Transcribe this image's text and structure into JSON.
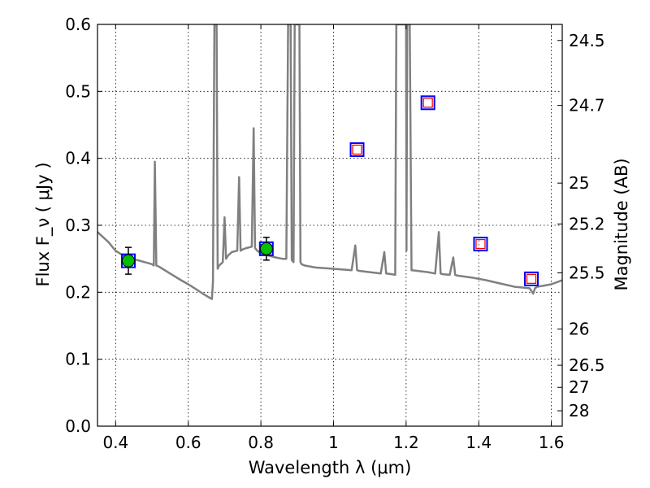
{
  "chart_data": {
    "type": "line",
    "xlabel": "Wavelength  λ (μm)",
    "ylabel": "Flux  F_ν  ( μJy )",
    "y2label": "Magnitude (AB)",
    "xlim": [
      0.35,
      1.63
    ],
    "ylim": [
      0.0,
      0.6
    ],
    "grid": true,
    "x_ticks": [
      0.4,
      0.6,
      0.8,
      1.0,
      1.2,
      1.4,
      1.6
    ],
    "x_tick_labels": [
      "0.4",
      "0.6",
      "0.8",
      "1",
      "1.2",
      "1.4",
      "1.6"
    ],
    "y_ticks": [
      0.0,
      0.1,
      0.2,
      0.3,
      0.4,
      0.5,
      0.6
    ],
    "y_tick_labels": [
      "0.0",
      "0.1",
      "0.2",
      "0.3",
      "0.4",
      "0.5",
      "0.6"
    ],
    "y2_ticks": [
      {
        "label": "24.5",
        "flux": 0.576
      },
      {
        "label": "24.7",
        "flux": 0.479
      },
      {
        "label": "25",
        "flux": 0.363
      },
      {
        "label": "25.2",
        "flux": 0.302
      },
      {
        "label": "25.5",
        "flux": 0.229
      },
      {
        "label": "26",
        "flux": 0.145
      },
      {
        "label": "26.5",
        "flux": 0.091
      },
      {
        "label": "27",
        "flux": 0.058
      },
      {
        "label": "28",
        "flux": 0.023
      }
    ],
    "colors": {
      "spectrum": "#808080",
      "observed": "#00c000",
      "model_outer": "#0000ff",
      "model_inner": "#ff0000",
      "grid": "#000000"
    },
    "series": [
      {
        "kind": "spectrum",
        "x": [
          0.35,
          0.36,
          0.38,
          0.4,
          0.42,
          0.44,
          0.46,
          0.48,
          0.5,
          0.505,
          0.508,
          0.512,
          0.52,
          0.55,
          0.58,
          0.6,
          0.62,
          0.64,
          0.655,
          0.665,
          0.668,
          0.672,
          0.675,
          0.678,
          0.681,
          0.685,
          0.695,
          0.7,
          0.704,
          0.71,
          0.72,
          0.735,
          0.74,
          0.744,
          0.75,
          0.76,
          0.775,
          0.78,
          0.784,
          0.79,
          0.8,
          0.82,
          0.84,
          0.86,
          0.87,
          0.875,
          0.878,
          0.882,
          0.885,
          0.89,
          0.893,
          0.896,
          0.899,
          0.903,
          0.906,
          0.909,
          0.912,
          0.92,
          0.95,
          1.0,
          1.05,
          1.06,
          1.065,
          1.07,
          1.1,
          1.13,
          1.14,
          1.145,
          1.16,
          1.17,
          1.173,
          1.176,
          1.18,
          1.19,
          1.2,
          1.201,
          1.203,
          1.205,
          1.208,
          1.21,
          1.215,
          1.23,
          1.26,
          1.28,
          1.29,
          1.295,
          1.3,
          1.32,
          1.33,
          1.335,
          1.34,
          1.38,
          1.42,
          1.46,
          1.5,
          1.54,
          1.55,
          1.555,
          1.56,
          1.58,
          1.6,
          1.63
        ],
        "values": [
          0.29,
          0.285,
          0.275,
          0.262,
          0.255,
          0.25,
          0.248,
          0.245,
          0.242,
          0.24,
          0.395,
          0.24,
          0.238,
          0.228,
          0.218,
          0.212,
          0.205,
          0.198,
          0.193,
          0.19,
          0.215,
          0.6,
          0.6,
          0.6,
          0.235,
          0.24,
          0.245,
          0.312,
          0.25,
          0.255,
          0.26,
          0.262,
          0.372,
          0.262,
          0.264,
          0.266,
          0.268,
          0.445,
          0.266,
          0.262,
          0.258,
          0.255,
          0.252,
          0.25,
          0.25,
          0.6,
          0.6,
          0.6,
          0.248,
          0.245,
          0.6,
          0.6,
          0.6,
          0.6,
          0.6,
          0.245,
          0.242,
          0.24,
          0.237,
          0.235,
          0.233,
          0.27,
          0.233,
          0.232,
          0.23,
          0.228,
          0.26,
          0.228,
          0.227,
          0.226,
          0.6,
          0.6,
          0.6,
          0.6,
          0.6,
          0.262,
          0.6,
          0.6,
          0.6,
          0.6,
          0.233,
          0.232,
          0.23,
          0.228,
          0.29,
          0.228,
          0.227,
          0.226,
          0.252,
          0.226,
          0.225,
          0.222,
          0.218,
          0.213,
          0.208,
          0.206,
          0.198,
          0.206,
          0.208,
          0.21,
          0.212,
          0.218
        ]
      },
      {
        "kind": "observed",
        "points": [
          {
            "x": 0.435,
            "y": 0.247,
            "yerr": 0.02
          },
          {
            "x": 0.815,
            "y": 0.265,
            "yerr": 0.017
          }
        ]
      },
      {
        "kind": "model",
        "points": [
          {
            "x": 0.435,
            "y": 0.247
          },
          {
            "x": 0.815,
            "y": 0.265
          },
          {
            "x": 1.065,
            "y": 0.413
          },
          {
            "x": 1.26,
            "y": 0.483
          },
          {
            "x": 1.405,
            "y": 0.272
          },
          {
            "x": 1.545,
            "y": 0.22
          }
        ]
      }
    ]
  }
}
